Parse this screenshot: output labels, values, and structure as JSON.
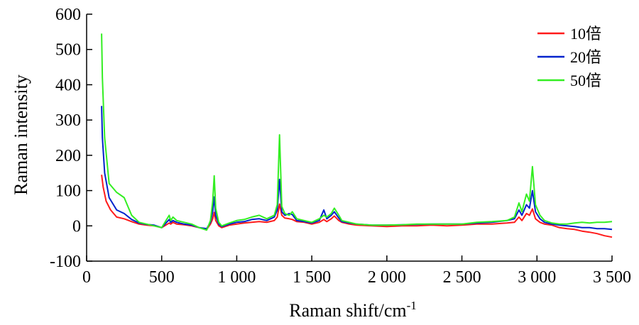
{
  "chart_data": {
    "type": "line",
    "title": "",
    "xlabel": "Raman shift/cm",
    "xlabel_superscript": "-1",
    "ylabel": "Raman intensity",
    "xlim": [
      0,
      3500
    ],
    "ylim": [
      -100,
      600
    ],
    "x_ticks": [
      0,
      500,
      1000,
      1500,
      2000,
      2500,
      3000,
      3500
    ],
    "x_tick_labels": [
      "0",
      "500",
      "1 000",
      "1 500",
      "2 000",
      "2 500",
      "3 000",
      "3 500"
    ],
    "y_ticks": [
      -100,
      0,
      100,
      200,
      300,
      400,
      500,
      600
    ],
    "y_tick_labels": [
      "-100",
      "0",
      "100",
      "200",
      "300",
      "400",
      "500",
      "600"
    ],
    "grid": false,
    "legend_position": "top-right",
    "series": [
      {
        "name": "10倍",
        "color": "#ff1a1a",
        "x": [
          100,
          110,
          130,
          160,
          200,
          250,
          300,
          350,
          400,
          450,
          500,
          550,
          560,
          575,
          600,
          650,
          700,
          750,
          800,
          825,
          840,
          850,
          860,
          880,
          900,
          950,
          1000,
          1050,
          1100,
          1150,
          1200,
          1250,
          1270,
          1285,
          1300,
          1320,
          1350,
          1370,
          1400,
          1450,
          1500,
          1550,
          1580,
          1600,
          1630,
          1650,
          1680,
          1700,
          1750,
          1800,
          1900,
          2000,
          2100,
          2200,
          2300,
          2400,
          2500,
          2600,
          2700,
          2800,
          2850,
          2880,
          2900,
          2930,
          2950,
          2970,
          2990,
          3020,
          3050,
          3100,
          3150,
          3200,
          3250,
          3300,
          3350,
          3400,
          3450,
          3500
        ],
        "y": [
          145,
          110,
          70,
          45,
          25,
          20,
          12,
          5,
          2,
          0,
          -5,
          8,
          5,
          10,
          5,
          3,
          0,
          -5,
          -10,
          5,
          20,
          38,
          15,
          0,
          -5,
          2,
          5,
          8,
          10,
          12,
          10,
          15,
          25,
          62,
          30,
          22,
          20,
          18,
          12,
          10,
          5,
          10,
          18,
          12,
          20,
          28,
          15,
          10,
          5,
          2,
          0,
          -2,
          0,
          0,
          2,
          0,
          2,
          5,
          5,
          8,
          10,
          25,
          15,
          35,
          30,
          48,
          20,
          10,
          5,
          2,
          -5,
          -8,
          -10,
          -15,
          -18,
          -22,
          -28,
          -32
        ]
      },
      {
        "name": "20倍",
        "color": "#0022cc",
        "x": [
          100,
          105,
          120,
          150,
          200,
          250,
          300,
          350,
          400,
          450,
          500,
          550,
          560,
          575,
          600,
          650,
          700,
          750,
          800,
          825,
          840,
          850,
          860,
          880,
          900,
          950,
          1000,
          1050,
          1100,
          1150,
          1200,
          1250,
          1270,
          1285,
          1300,
          1320,
          1350,
          1370,
          1400,
          1450,
          1500,
          1550,
          1580,
          1600,
          1630,
          1650,
          1680,
          1700,
          1750,
          1800,
          1900,
          2000,
          2100,
          2200,
          2300,
          2400,
          2500,
          2600,
          2700,
          2800,
          2850,
          2880,
          2900,
          2930,
          2950,
          2970,
          2990,
          3020,
          3050,
          3100,
          3150,
          3200,
          3250,
          3300,
          3350,
          3400,
          3450,
          3500
        ],
        "y": [
          340,
          250,
          150,
          80,
          45,
          35,
          18,
          8,
          4,
          2,
          -5,
          18,
          10,
          15,
          10,
          5,
          2,
          -5,
          -8,
          10,
          40,
          82,
          30,
          5,
          -2,
          5,
          10,
          12,
          18,
          20,
          15,
          25,
          45,
          132,
          40,
          30,
          35,
          32,
          15,
          12,
          8,
          15,
          45,
          20,
          30,
          40,
          22,
          12,
          8,
          5,
          2,
          2,
          3,
          4,
          5,
          5,
          5,
          8,
          10,
          15,
          20,
          45,
          30,
          60,
          50,
          100,
          40,
          20,
          10,
          5,
          2,
          0,
          -2,
          -5,
          -5,
          -8,
          -8,
          -10
        ]
      },
      {
        "name": "50倍",
        "color": "#33ee22",
        "x": [
          100,
          105,
          120,
          150,
          200,
          250,
          300,
          350,
          400,
          450,
          500,
          550,
          560,
          575,
          600,
          650,
          700,
          750,
          800,
          825,
          840,
          850,
          860,
          880,
          900,
          950,
          1000,
          1050,
          1100,
          1150,
          1200,
          1250,
          1270,
          1285,
          1300,
          1320,
          1350,
          1370,
          1400,
          1450,
          1500,
          1550,
          1580,
          1600,
          1630,
          1650,
          1680,
          1700,
          1750,
          1800,
          1900,
          2000,
          2100,
          2200,
          2300,
          2400,
          2500,
          2600,
          2700,
          2800,
          2850,
          2880,
          2900,
          2930,
          2950,
          2970,
          2990,
          3020,
          3050,
          3100,
          3150,
          3200,
          3250,
          3300,
          3350,
          3400,
          3450,
          3500
        ],
        "y": [
          545,
          420,
          250,
          120,
          95,
          80,
          30,
          10,
          5,
          0,
          -5,
          30,
          15,
          25,
          15,
          10,
          5,
          -5,
          -12,
          15,
          70,
          142,
          50,
          10,
          0,
          8,
          15,
          18,
          25,
          30,
          20,
          30,
          60,
          258,
          55,
          35,
          30,
          40,
          20,
          15,
          10,
          20,
          30,
          25,
          35,
          50,
          30,
          15,
          10,
          5,
          2,
          2,
          3,
          5,
          5,
          5,
          5,
          10,
          12,
          15,
          25,
          65,
          40,
          90,
          70,
          168,
          60,
          30,
          15,
          8,
          5,
          5,
          8,
          10,
          8,
          10,
          10,
          12
        ]
      }
    ]
  }
}
